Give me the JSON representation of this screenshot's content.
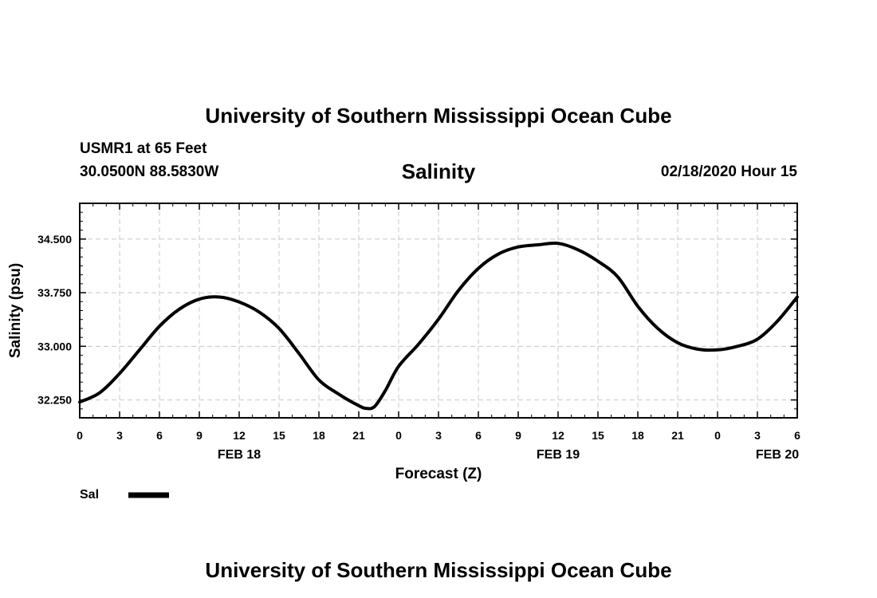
{
  "header": {
    "title": "University of Southern Mississippi Ocean Cube",
    "station": "USMR1 at 65 Feet",
    "coordinates": "30.0500N 88.5830W",
    "datetime": "02/18/2020 Hour 15"
  },
  "footer": {
    "title": "University of Southern Mississippi Ocean Cube"
  },
  "chart_data": {
    "type": "line",
    "title": "Salinity",
    "xlabel": "Forecast (Z)",
    "ylabel": "Salinity (psu)",
    "x_unit": "hours since FEB 18 00Z",
    "xlim": [
      0,
      54
    ],
    "ylim": [
      32.0,
      35.0
    ],
    "grid": true,
    "x_ticks": [
      {
        "x": 0,
        "label": "0"
      },
      {
        "x": 3,
        "label": "3"
      },
      {
        "x": 6,
        "label": "6"
      },
      {
        "x": 9,
        "label": "9"
      },
      {
        "x": 12,
        "label": "12"
      },
      {
        "x": 15,
        "label": "15"
      },
      {
        "x": 18,
        "label": "18"
      },
      {
        "x": 21,
        "label": "21"
      },
      {
        "x": 24,
        "label": "0"
      },
      {
        "x": 27,
        "label": "3"
      },
      {
        "x": 30,
        "label": "6"
      },
      {
        "x": 33,
        "label": "9"
      },
      {
        "x": 36,
        "label": "12"
      },
      {
        "x": 39,
        "label": "15"
      },
      {
        "x": 42,
        "label": "18"
      },
      {
        "x": 45,
        "label": "21"
      },
      {
        "x": 48,
        "label": "0"
      },
      {
        "x": 51,
        "label": "3"
      },
      {
        "x": 54,
        "label": "6"
      }
    ],
    "date_labels": [
      {
        "x": 12,
        "label": "FEB 18"
      },
      {
        "x": 36,
        "label": "FEB 19"
      },
      {
        "x": 52.5,
        "label": "FEB 20"
      }
    ],
    "y_ticks": [
      {
        "y": 32.25,
        "label": "32.250"
      },
      {
        "y": 33.0,
        "label": "33.000"
      },
      {
        "y": 33.75,
        "label": "33.750"
      },
      {
        "y": 34.5,
        "label": "34.500"
      }
    ],
    "legend": {
      "label": "Sal",
      "position": "bottom-left"
    },
    "series": [
      {
        "name": "Sal",
        "x": [
          0,
          1.5,
          3,
          4.5,
          6,
          7.5,
          9,
          10.5,
          12,
          13.5,
          15,
          16.5,
          18,
          19.5,
          21,
          21.6,
          22.2,
          23,
          24,
          25.5,
          27,
          28.5,
          30,
          31.5,
          33,
          34.5,
          36,
          37.5,
          39,
          40.5,
          42,
          43.5,
          45,
          46.5,
          48,
          49.5,
          51,
          52.5,
          54
        ],
        "y": [
          32.22,
          32.35,
          32.62,
          32.95,
          33.28,
          33.52,
          33.66,
          33.69,
          33.62,
          33.48,
          33.25,
          32.9,
          32.53,
          32.33,
          32.17,
          32.13,
          32.16,
          32.38,
          32.72,
          33.03,
          33.38,
          33.78,
          34.09,
          34.29,
          34.39,
          34.42,
          34.44,
          34.35,
          34.19,
          33.97,
          33.56,
          33.25,
          33.05,
          32.96,
          32.95,
          33.0,
          33.1,
          33.35,
          33.69
        ]
      }
    ]
  }
}
